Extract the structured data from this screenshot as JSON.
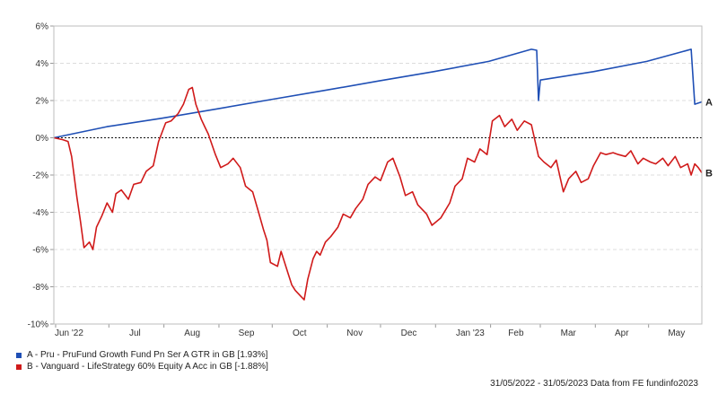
{
  "chart_data": {
    "type": "line",
    "x_ticks": [
      "Jun '22",
      "Jul",
      "Aug",
      "Sep",
      "Oct",
      "Nov",
      "Dec",
      "Jan '23",
      "Feb",
      "Mar",
      "Apr",
      "May"
    ],
    "y_ticks": [
      "6%",
      "4%",
      "2%",
      "0%",
      "-2%",
      "-4%",
      "-6%",
      "-8%",
      "-10%"
    ],
    "ylim": [
      -10,
      6
    ],
    "xlim": [
      "2022-05-31",
      "2023-05-31"
    ],
    "grid": true,
    "zero_line": "dotted",
    "legend_position": "bottom-left",
    "series": [
      {
        "name": "A - Pru - PruFund Growth Fund Pn Ser A GTR in GB [1.93%]",
        "end_label": "A",
        "color": "#1f4fb5",
        "points": [
          [
            "2022-05-31",
            0.0
          ],
          [
            "2022-06-30",
            0.6
          ],
          [
            "2022-07-31",
            1.05
          ],
          [
            "2022-08-31",
            1.55
          ],
          [
            "2022-09-30",
            2.05
          ],
          [
            "2022-10-31",
            2.55
          ],
          [
            "2022-11-30",
            3.05
          ],
          [
            "2022-12-31",
            3.55
          ],
          [
            "2023-01-31",
            4.1
          ],
          [
            "2023-02-24",
            4.75
          ],
          [
            "2023-02-27",
            4.7
          ],
          [
            "2023-02-28",
            2.0
          ],
          [
            "2023-03-01",
            3.1
          ],
          [
            "2023-03-31",
            3.55
          ],
          [
            "2023-04-30",
            4.1
          ],
          [
            "2023-05-25",
            4.75
          ],
          [
            "2023-05-27",
            1.8
          ],
          [
            "2023-05-31",
            1.93
          ]
        ]
      },
      {
        "name": "B - Vanguard - LifeStrategy 60% Equity A Acc in GB [-1.88%]",
        "end_label": "B",
        "color": "#d01a1a",
        "points": [
          [
            "2022-05-31",
            0.0
          ],
          [
            "2022-06-05",
            -0.1
          ],
          [
            "2022-06-08",
            -0.2
          ],
          [
            "2022-06-10",
            -1.0
          ],
          [
            "2022-06-13",
            -3.2
          ],
          [
            "2022-06-15",
            -4.5
          ],
          [
            "2022-06-17",
            -5.9
          ],
          [
            "2022-06-20",
            -5.6
          ],
          [
            "2022-06-22",
            -6.0
          ],
          [
            "2022-06-24",
            -4.8
          ],
          [
            "2022-06-27",
            -4.2
          ],
          [
            "2022-06-30",
            -3.5
          ],
          [
            "2022-07-03",
            -4.0
          ],
          [
            "2022-07-05",
            -3.0
          ],
          [
            "2022-07-08",
            -2.8
          ],
          [
            "2022-07-12",
            -3.3
          ],
          [
            "2022-07-15",
            -2.5
          ],
          [
            "2022-07-19",
            -2.4
          ],
          [
            "2022-07-22",
            -1.8
          ],
          [
            "2022-07-26",
            -1.5
          ],
          [
            "2022-07-29",
            -0.2
          ],
          [
            "2022-08-02",
            0.8
          ],
          [
            "2022-08-05",
            0.9
          ],
          [
            "2022-08-09",
            1.3
          ],
          [
            "2022-08-12",
            1.8
          ],
          [
            "2022-08-15",
            2.6
          ],
          [
            "2022-08-17",
            2.7
          ],
          [
            "2022-08-19",
            1.8
          ],
          [
            "2022-08-22",
            1.0
          ],
          [
            "2022-08-24",
            0.6
          ],
          [
            "2022-08-26",
            0.2
          ],
          [
            "2022-08-30",
            -0.9
          ],
          [
            "2022-09-02",
            -1.6
          ],
          [
            "2022-09-06",
            -1.4
          ],
          [
            "2022-09-09",
            -1.1
          ],
          [
            "2022-09-13",
            -1.6
          ],
          [
            "2022-09-16",
            -2.6
          ],
          [
            "2022-09-20",
            -2.9
          ],
          [
            "2022-09-23",
            -3.9
          ],
          [
            "2022-09-26",
            -4.9
          ],
          [
            "2022-09-28",
            -5.5
          ],
          [
            "2022-09-30",
            -6.7
          ],
          [
            "2022-10-04",
            -6.9
          ],
          [
            "2022-10-06",
            -6.1
          ],
          [
            "2022-10-10",
            -7.3
          ],
          [
            "2022-10-12",
            -7.9
          ],
          [
            "2022-10-14",
            -8.2
          ],
          [
            "2022-10-17",
            -8.5
          ],
          [
            "2022-10-19",
            -8.7
          ],
          [
            "2022-10-21",
            -7.6
          ],
          [
            "2022-10-24",
            -6.5
          ],
          [
            "2022-10-26",
            -6.1
          ],
          [
            "2022-10-28",
            -6.3
          ],
          [
            "2022-10-31",
            -5.6
          ],
          [
            "2022-11-03",
            -5.3
          ],
          [
            "2022-11-07",
            -4.8
          ],
          [
            "2022-11-10",
            -4.1
          ],
          [
            "2022-11-14",
            -4.3
          ],
          [
            "2022-11-17",
            -3.8
          ],
          [
            "2022-11-21",
            -3.3
          ],
          [
            "2022-11-24",
            -2.5
          ],
          [
            "2022-11-28",
            -2.1
          ],
          [
            "2022-12-01",
            -2.3
          ],
          [
            "2022-12-05",
            -1.3
          ],
          [
            "2022-12-08",
            -1.1
          ],
          [
            "2022-12-12",
            -2.1
          ],
          [
            "2022-12-15",
            -3.1
          ],
          [
            "2022-12-19",
            -2.9
          ],
          [
            "2022-12-22",
            -3.6
          ],
          [
            "2022-12-27",
            -4.1
          ],
          [
            "2022-12-30",
            -4.7
          ],
          [
            "2023-01-04",
            -4.3
          ],
          [
            "2023-01-09",
            -3.5
          ],
          [
            "2023-01-12",
            -2.6
          ],
          [
            "2023-01-16",
            -2.2
          ],
          [
            "2023-01-19",
            -1.1
          ],
          [
            "2023-01-23",
            -1.3
          ],
          [
            "2023-01-26",
            -0.6
          ],
          [
            "2023-01-30",
            -0.9
          ],
          [
            "2023-02-02",
            0.9
          ],
          [
            "2023-02-06",
            1.2
          ],
          [
            "2023-02-09",
            0.6
          ],
          [
            "2023-02-13",
            1.0
          ],
          [
            "2023-02-16",
            0.4
          ],
          [
            "2023-02-20",
            0.9
          ],
          [
            "2023-02-24",
            0.7
          ],
          [
            "2023-02-28",
            -1.0
          ],
          [
            "2023-03-03",
            -1.3
          ],
          [
            "2023-03-07",
            -1.6
          ],
          [
            "2023-03-10",
            -1.2
          ],
          [
            "2023-03-14",
            -2.9
          ],
          [
            "2023-03-17",
            -2.2
          ],
          [
            "2023-03-21",
            -1.8
          ],
          [
            "2023-03-24",
            -2.4
          ],
          [
            "2023-03-28",
            -2.2
          ],
          [
            "2023-03-31",
            -1.5
          ],
          [
            "2023-04-04",
            -0.8
          ],
          [
            "2023-04-07",
            -0.9
          ],
          [
            "2023-04-11",
            -0.8
          ],
          [
            "2023-04-14",
            -0.9
          ],
          [
            "2023-04-18",
            -1.0
          ],
          [
            "2023-04-21",
            -0.7
          ],
          [
            "2023-04-25",
            -1.4
          ],
          [
            "2023-04-28",
            -1.1
          ],
          [
            "2023-05-02",
            -1.3
          ],
          [
            "2023-05-05",
            -1.4
          ],
          [
            "2023-05-09",
            -1.1
          ],
          [
            "2023-05-12",
            -1.5
          ],
          [
            "2023-05-16",
            -1.0
          ],
          [
            "2023-05-19",
            -1.6
          ],
          [
            "2023-05-23",
            -1.4
          ],
          [
            "2023-05-25",
            -2.0
          ],
          [
            "2023-05-27",
            -1.4
          ],
          [
            "2023-05-29",
            -1.6
          ],
          [
            "2023-05-31",
            -1.88
          ]
        ]
      }
    ]
  },
  "legend": [
    {
      "marker": "A",
      "text": "A - Pru - PruFund Growth Fund Pn Ser A GTR in GB [1.93%]",
      "color": "#1f4fb5"
    },
    {
      "marker": "B",
      "text": "B - Vanguard - LifeStrategy 60% Equity A Acc in GB [-1.88%]",
      "color": "#d01a1a"
    }
  ],
  "footer": "31/05/2022 - 31/05/2023 Data from FE fundinfo2023"
}
